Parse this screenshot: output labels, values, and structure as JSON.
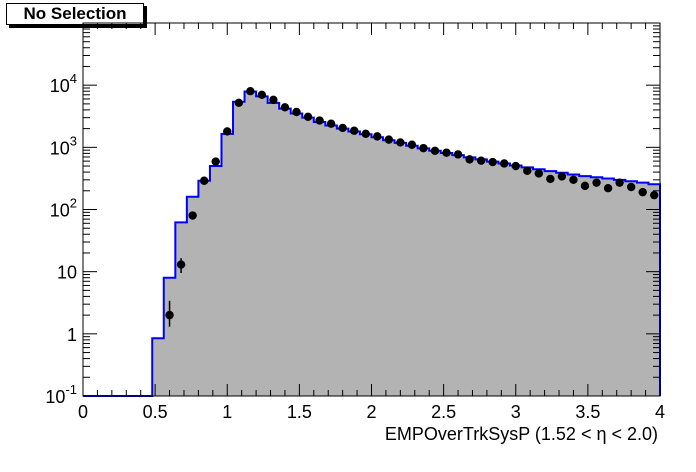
{
  "selection_label": "No Selection",
  "chart_data": {
    "type": "histogram",
    "xlabel": "EMPOverTrkSysP (1.52 <   η < 2.0)",
    "xlim": [
      0,
      4
    ],
    "ylim": [
      0.1,
      100000
    ],
    "y_scale": "log",
    "x_ticks": [
      "0",
      "0.5",
      "1",
      "1.5",
      "2",
      "2.5",
      "3",
      "3.5",
      "4"
    ],
    "y_ticks": [
      {
        "base": "10",
        "exp": "-1"
      },
      {
        "base": "1",
        "exp": ""
      },
      {
        "base": "10",
        "exp": ""
      },
      {
        "base": "10",
        "exp": "2"
      },
      {
        "base": "10",
        "exp": "3"
      },
      {
        "base": "10",
        "exp": "4"
      }
    ],
    "bin_width": 0.08,
    "mc_histogram": {
      "fill": "#b3b3b3",
      "line": "#0000ff",
      "bin_edges_start": 0.0,
      "values": [
        0.1,
        0.1,
        0.1,
        0.1,
        0.1,
        0.1,
        0.85,
        8,
        62,
        160,
        290,
        500,
        1650,
        5400,
        7900,
        6600,
        5200,
        4200,
        3500,
        3000,
        2550,
        2250,
        2000,
        1800,
        1620,
        1450,
        1300,
        1180,
        1060,
        960,
        880,
        810,
        750,
        690,
        640,
        590,
        550,
        510,
        475,
        445,
        415,
        390,
        365,
        345,
        330,
        315,
        300,
        285,
        270,
        255,
        245
      ]
    },
    "data_points": {
      "color": "#000000",
      "x": [
        0.6,
        0.68,
        0.76,
        0.84,
        0.92,
        1.0,
        1.08,
        1.16,
        1.24,
        1.32,
        1.4,
        1.48,
        1.56,
        1.64,
        1.72,
        1.8,
        1.88,
        1.96,
        2.04,
        2.12,
        2.2,
        2.28,
        2.36,
        2.44,
        2.52,
        2.6,
        2.68,
        2.76,
        2.84,
        2.92,
        3.0,
        3.08,
        3.16,
        3.24,
        3.32,
        3.4,
        3.48,
        3.56,
        3.64,
        3.72,
        3.8,
        3.88,
        3.96
      ],
      "y": [
        2,
        13,
        80,
        290,
        590,
        1800,
        5200,
        8000,
        7000,
        5800,
        4400,
        3700,
        3100,
        2700,
        2400,
        2050,
        1850,
        1650,
        1500,
        1330,
        1200,
        1100,
        970,
        880,
        820,
        770,
        640,
        610,
        580,
        550,
        500,
        420,
        380,
        310,
        340,
        300,
        240,
        270,
        220,
        270,
        230,
        190,
        170
      ],
      "y_err_low": [
        0.7,
        3.5,
        0,
        0,
        0,
        0,
        0,
        0,
        0,
        0,
        0,
        0,
        0,
        0,
        0,
        0,
        0,
        0,
        0,
        0,
        0,
        0,
        0,
        0,
        0,
        0,
        0,
        0,
        0,
        0,
        0,
        0,
        0,
        0,
        0,
        0,
        0,
        0,
        0,
        0,
        0,
        0,
        0
      ],
      "y_err_high": [
        1.4,
        3.5,
        0,
        0,
        0,
        0,
        0,
        0,
        0,
        0,
        0,
        0,
        0,
        0,
        0,
        0,
        0,
        0,
        0,
        0,
        0,
        0,
        0,
        0,
        0,
        0,
        0,
        0,
        0,
        0,
        0,
        0,
        0,
        0,
        0,
        0,
        0,
        0,
        0,
        0,
        0,
        0,
        0
      ]
    },
    "grid": false,
    "legend": "none"
  }
}
